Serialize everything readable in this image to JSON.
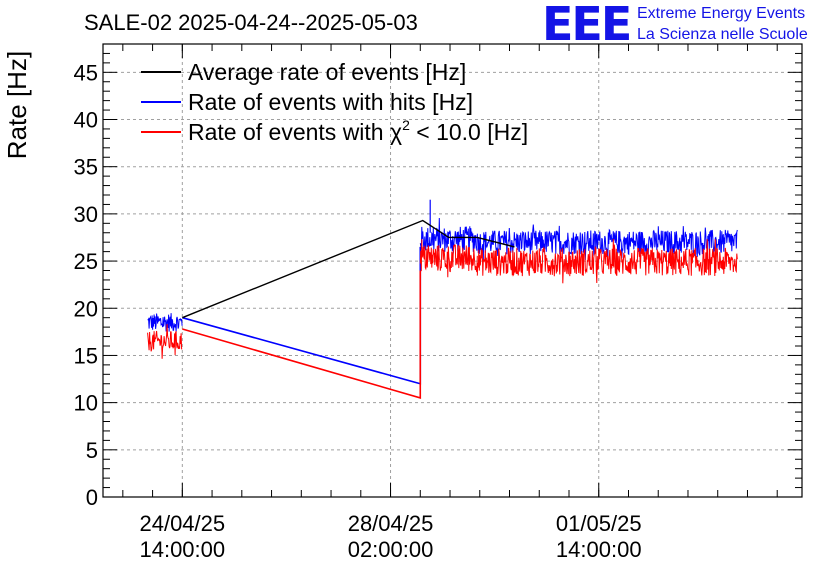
{
  "chart_data": {
    "type": "line",
    "title": "SALE-02 2025-04-24--2025-05-03",
    "ylabel": "Rate [Hz]",
    "xlabel": "",
    "ylim": [
      0,
      48
    ],
    "yticks": [
      0,
      5,
      10,
      15,
      20,
      25,
      30,
      35,
      40,
      45
    ],
    "xlim": [
      "2025-04-23T06:00:00",
      "2025-05-05T00:00:00"
    ],
    "xticks": [
      {
        "value": "2025-04-24T14:00:00",
        "label_line1": "24/04/25",
        "label_line2": "14:00:00"
      },
      {
        "value": "2025-04-28T02:00:00",
        "label_line1": "28/04/25",
        "label_line2": "02:00:00"
      },
      {
        "value": "2025-05-01T14:00:00",
        "label_line1": "01/05/25",
        "label_line2": "14:00:00"
      }
    ],
    "grid": true,
    "legend_position": "top-left",
    "series": [
      {
        "name": "Average rate of events [Hz]",
        "color": "#000000",
        "points": [
          {
            "x": "2025-04-24T14:00:00",
            "y": 19.0
          },
          {
            "x": "2025-04-28T15:00:00",
            "y": 29.3
          },
          {
            "x": "2025-04-29T01:30:00",
            "y": 27.5
          },
          {
            "x": "2025-04-29T13:00:00",
            "y": 27.5
          },
          {
            "x": "2025-04-30T04:00:00",
            "y": 26.5
          }
        ]
      },
      {
        "name": "Rate of events with hits [Hz]",
        "color": "#0000ff",
        "segments": [
          {
            "start": "2025-04-24T00:00:00",
            "end": "2025-04-24T14:00:00",
            "mean": 18.5,
            "spread": 1.0
          },
          {
            "start": "2025-04-28T14:00:00",
            "end": "2025-04-29T13:00:00",
            "mean": 27.3,
            "spread": 1.4
          },
          {
            "start": "2025-04-29T13:00:00",
            "end": "2025-05-03T22:00:00",
            "mean": 27.0,
            "spread": 1.3
          }
        ],
        "connectors": [
          {
            "x": "2025-04-24T14:00:00",
            "y": 19.0
          },
          {
            "x": "2025-04-28T14:00:00",
            "y": 12.0
          },
          {
            "x": "2025-04-28T14:00:00",
            "y": 26.5
          }
        ],
        "max_spike": {
          "x": "2025-04-28T18:00:00",
          "y": 31.5
        }
      },
      {
        "name": "Rate of events with χ2 < 10.0 [Hz]",
        "color": "#ff0000",
        "segments": [
          {
            "start": "2025-04-24T00:00:00",
            "end": "2025-04-24T14:00:00",
            "mean": 16.5,
            "spread": 1.1
          },
          {
            "start": "2025-04-28T14:00:00",
            "end": "2025-04-29T13:00:00",
            "mean": 25.3,
            "spread": 1.5
          },
          {
            "start": "2025-04-29T13:00:00",
            "end": "2025-05-03T22:00:00",
            "mean": 24.9,
            "spread": 1.5
          }
        ],
        "connectors": [
          {
            "x": "2025-04-24T14:00:00",
            "y": 17.8
          },
          {
            "x": "2025-04-28T14:00:00",
            "y": 10.5
          },
          {
            "x": "2025-04-28T14:00:00",
            "y": 24.0
          }
        ]
      }
    ]
  },
  "legend": {
    "entries": [
      {
        "label": "Average rate of events [Hz]",
        "color": "#000000"
      },
      {
        "label": "Rate of events with hits [Hz]",
        "color": "#0000ff"
      },
      {
        "label_prefix": "Rate of events with χ",
        "label_sup": "2",
        "label_suffix": " < 10.0 [Hz]",
        "color": "#ff0000"
      }
    ]
  },
  "logo": {
    "mark": "EEE",
    "line1": "Extreme Energy Events",
    "line2": "La Scienza nelle Scuole",
    "color": "#1414e6"
  }
}
